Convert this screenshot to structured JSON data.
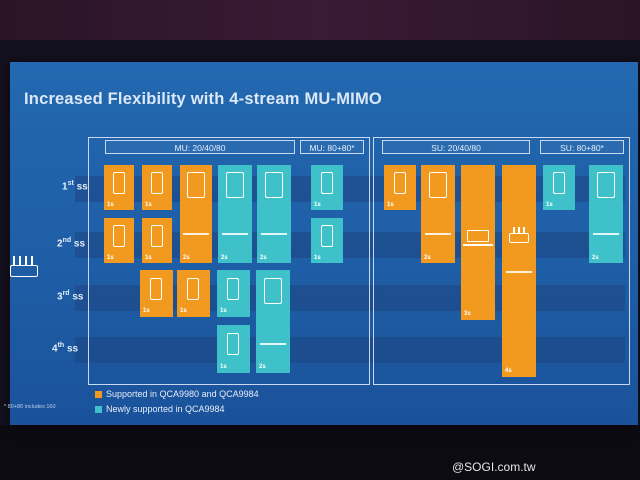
{
  "slide": {
    "title": "Increased Flexibility with 4-stream MU-MIMO",
    "rows": [
      "1st ss",
      "2nd ss",
      "3rd ss",
      "4th ss"
    ],
    "row_label_parts": [
      {
        "num": "1",
        "sup": "st",
        "rest": " ss"
      },
      {
        "num": "2",
        "sup": "nd",
        "rest": " ss"
      },
      {
        "num": "3",
        "sup": "rd",
        "rest": " ss"
      },
      {
        "num": "4",
        "sup": "th",
        "rest": " ss"
      }
    ],
    "sections": [
      {
        "id": "mu",
        "columns": [
          "MU: 20/40/80",
          "MU: 80+80*"
        ]
      },
      {
        "id": "su",
        "columns": [
          "SU: 20/40/80",
          "SU: 80+80*"
        ]
      }
    ],
    "stream_labels": {
      "s1": "1s",
      "s2": "2s",
      "s3": "3s",
      "s4": "4s"
    },
    "legend": [
      {
        "text": "Supported in QCA9980 and QCA9984",
        "color": "#f29a1f"
      },
      {
        "text": "Newly supported in QCA9984",
        "color": "#3fc1c9"
      }
    ],
    "footnote": "* 80+80 includes 160"
  },
  "watermark": "@SOGI.com.tw"
}
